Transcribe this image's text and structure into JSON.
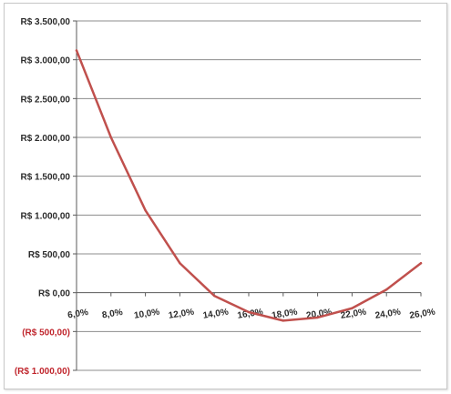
{
  "chart_data": {
    "type": "line",
    "title": "",
    "xlabel": "",
    "ylabel": "",
    "x": [
      "6,0%",
      "8,0%",
      "10,0%",
      "12,0%",
      "14,0%",
      "16,0%",
      "18,0%",
      "20,0%",
      "22,0%",
      "24,0%",
      "26,0%"
    ],
    "x_values": [
      6,
      8,
      10,
      12,
      14,
      16,
      18,
      20,
      22,
      24,
      26
    ],
    "series": [
      {
        "values": [
          3120,
          2000,
          1060,
          380,
          -40,
          -250,
          -360,
          -320,
          -200,
          40,
          380
        ]
      }
    ],
    "ylim": [
      -1000,
      3500
    ],
    "xlim": [
      6,
      26
    ],
    "y_ticks": [
      -1000,
      -500,
      0,
      500,
      1000,
      1500,
      2000,
      2500,
      3000,
      3500
    ],
    "y_tick_labels": [
      "(R$ 1.000,00)",
      "(R$ 500,00)",
      "R$ 0,00",
      "R$ 500,00",
      "R$ 1.000,00",
      "R$ 1.500,00",
      "R$ 2.000,00",
      "R$ 2.500,00",
      "R$ 3.000,00",
      "R$ 3.500,00"
    ],
    "grid": true,
    "legend": "none",
    "colors": {
      "line": "#c0504d",
      "negative_label": "#c0262d",
      "label": "#2b2b2b",
      "grid": "#8c8c8c",
      "axis": "#5a5a5a"
    }
  }
}
